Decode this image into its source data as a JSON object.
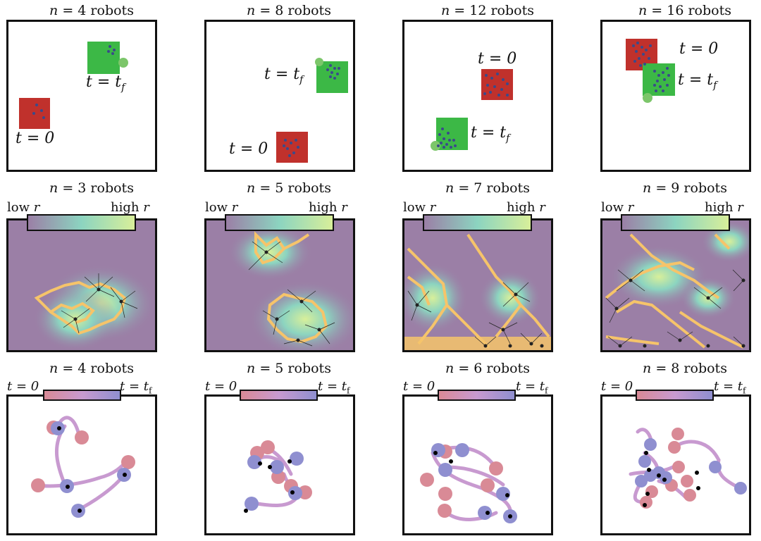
{
  "row1": {
    "panels": [
      {
        "title_n": "4",
        "start_label": "t = 0",
        "end_label": "t = t",
        "end_sub": "f"
      },
      {
        "title_n": "8",
        "start_label": "t = 0",
        "end_label": "t = t",
        "end_sub": "f"
      },
      {
        "title_n": "12",
        "start_label": "t = 0",
        "end_label": "t = t",
        "end_sub": "f"
      },
      {
        "title_n": "16",
        "start_label": "t = 0",
        "end_label": "t = t",
        "end_sub": "f"
      }
    ]
  },
  "row2": {
    "panels": [
      {
        "title_n": "3"
      },
      {
        "title_n": "5"
      },
      {
        "title_n": "7"
      },
      {
        "title_n": "9"
      }
    ],
    "colorbar": {
      "low": "low",
      "high": "high",
      "var": "r"
    }
  },
  "row3": {
    "panels": [
      {
        "title_n": "4"
      },
      {
        "title_n": "5"
      },
      {
        "title_n": "6"
      },
      {
        "title_n": "8"
      }
    ],
    "colorbar": {
      "start": "t = 0",
      "end": "t = t",
      "end_sub": "f"
    }
  },
  "title_prefix": "n = ",
  "title_suffix": " robots",
  "colors": {
    "start_box": "#c0312c",
    "goal_box": "#3cb846",
    "robot_dot": "#3a4a8a",
    "background_field": "#9b7fa6",
    "path": "#f6c46a",
    "traj": "#c89ad0",
    "start_disc": "#d98a96",
    "end_disc": "#8f8fd0"
  }
}
